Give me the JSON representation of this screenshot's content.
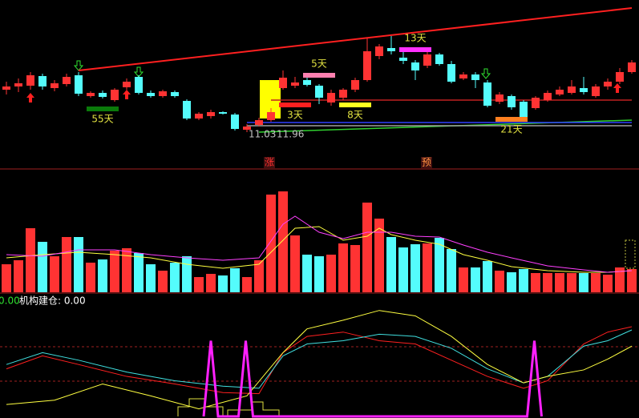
{
  "chart_data": [
    {
      "type": "candlestick",
      "up_color": "#ff3333",
      "down_color": "#54fcfc",
      "ylim": [
        10.93,
        12.63
      ],
      "open": [
        11.56,
        11.6,
        11.61,
        11.73,
        11.58,
        11.63,
        11.74,
        11.48,
        11.52,
        11.43,
        11.59,
        11.72,
        11.52,
        11.48,
        11.53,
        11.42,
        11.2,
        11.23,
        11.28,
        11.25,
        11.06,
        11.12,
        11.18,
        11.58,
        11.61,
        11.68,
        11.61,
        11.4,
        11.46,
        11.56,
        11.68,
        11.98,
        12.08,
        11.96,
        11.9,
        11.86,
        12.0,
        11.88,
        11.7,
        11.75,
        11.65,
        11.41,
        11.48,
        11.41,
        11.33,
        11.43,
        11.5,
        11.52,
        11.58,
        11.48,
        11.6,
        11.66,
        11.78
      ],
      "high": [
        11.66,
        11.7,
        11.78,
        11.76,
        11.68,
        11.76,
        11.78,
        11.54,
        11.55,
        11.58,
        11.7,
        11.74,
        11.55,
        11.56,
        11.55,
        11.44,
        11.28,
        11.31,
        11.29,
        11.27,
        11.13,
        11.21,
        11.33,
        11.8,
        11.72,
        11.72,
        11.63,
        11.56,
        11.58,
        11.71,
        12.2,
        12.13,
        12.23,
        12.06,
        11.93,
        12.03,
        12.02,
        11.92,
        11.78,
        11.78,
        11.68,
        11.53,
        11.5,
        11.43,
        11.48,
        11.55,
        11.6,
        11.68,
        11.72,
        11.63,
        11.7,
        11.83,
        11.93
      ],
      "low": [
        11.5,
        11.53,
        11.56,
        11.56,
        11.54,
        11.6,
        11.48,
        11.46,
        11.45,
        11.41,
        11.56,
        11.5,
        11.46,
        11.46,
        11.46,
        11.18,
        11.18,
        11.2,
        11.25,
        11.05,
        11.03,
        11.1,
        11.16,
        11.56,
        11.58,
        11.6,
        11.38,
        11.36,
        11.43,
        11.53,
        11.66,
        11.94,
        12.0,
        11.88,
        11.68,
        11.83,
        11.86,
        11.64,
        11.68,
        11.58,
        11.34,
        11.38,
        11.31,
        11.2,
        11.31,
        11.41,
        11.48,
        11.5,
        11.5,
        11.46,
        11.56,
        11.63,
        11.76
      ],
      "close": [
        11.6,
        11.64,
        11.74,
        11.6,
        11.64,
        11.72,
        11.51,
        11.52,
        11.47,
        11.56,
        11.66,
        11.52,
        11.48,
        11.54,
        11.48,
        11.2,
        11.26,
        11.28,
        11.26,
        11.07,
        11.1,
        11.18,
        11.28,
        11.71,
        11.65,
        11.62,
        11.46,
        11.52,
        11.56,
        11.68,
        12.04,
        12.1,
        12.04,
        11.92,
        11.8,
        12.0,
        11.88,
        11.66,
        11.75,
        11.68,
        11.36,
        11.5,
        11.34,
        11.22,
        11.46,
        11.52,
        11.56,
        11.6,
        11.53,
        11.6,
        11.66,
        11.78,
        11.9
      ],
      "lines": [
        {
          "color": "#ff2020",
          "x": [
            6,
            52
          ],
          "values": [
            11.8,
            12.58
          ]
        },
        {
          "color": "#30d030",
          "x": [
            21,
            52
          ],
          "values": [
            11.03,
            11.18
          ]
        },
        {
          "color": "#3040ff",
          "x": [
            20,
            52
          ],
          "values": [
            11.15,
            11.15
          ]
        },
        {
          "color": "#a0a0a0",
          "x": [
            20,
            52
          ],
          "values": [
            11.11,
            11.11
          ]
        },
        {
          "color": "#c02020",
          "x": [
            22,
            52
          ],
          "values": [
            11.43,
            11.43
          ]
        }
      ],
      "annotations": [
        {
          "label": "55天",
          "x": [
            7,
            9
          ],
          "value": 11.32,
          "color": "#0a7a0a"
        },
        {
          "label": "3天",
          "x": [
            23,
            25
          ],
          "value": 11.37,
          "color": "#ff2020"
        },
        {
          "label": "5天",
          "x": [
            25,
            27
          ],
          "value": 11.74,
          "color": "#ff80b0"
        },
        {
          "label": "8天",
          "x": [
            28,
            30
          ],
          "value": 11.37,
          "color": "#ffff20"
        },
        {
          "label": "13天",
          "x": [
            33,
            35
          ],
          "value": 12.06,
          "color": "#ff30ff"
        },
        {
          "label": "21天",
          "x": [
            41,
            43
          ],
          "value": 11.19,
          "color": "#ff8020"
        }
      ],
      "price_labels": [
        "11.03",
        "11.96"
      ]
    },
    {
      "type": "bar",
      "ylim": [
        0,
        145
      ],
      "values": [
        35,
        40,
        80,
        63,
        45,
        69,
        69,
        37,
        41,
        52,
        55,
        49,
        35,
        27,
        37,
        45,
        19,
        23,
        21,
        30,
        19,
        40,
        122,
        126,
        71,
        47,
        45,
        47,
        61,
        59,
        112,
        92,
        69,
        56,
        60,
        61,
        68,
        54,
        31,
        31,
        39,
        27,
        25,
        29,
        24,
        24,
        24,
        24,
        24,
        24,
        22,
        31,
        29
      ],
      "markers": [
        "涨",
        "预"
      ],
      "series": [
        {
          "color": "#ffff40",
          "x": [
            0,
            3,
            6,
            9,
            12,
            15,
            18,
            21,
            23,
            24,
            26,
            28,
            30,
            31,
            32,
            34,
            36,
            38,
            40,
            42,
            45,
            48,
            50,
            52
          ],
          "values": [
            43,
            47,
            50,
            47,
            43,
            35,
            30,
            35,
            65,
            80,
            82,
            65,
            70,
            80,
            72,
            65,
            60,
            47,
            40,
            32,
            27,
            25,
            25,
            27
          ]
        },
        {
          "color": "#ff40ff",
          "x": [
            0,
            3,
            6,
            9,
            12,
            15,
            18,
            21,
            23,
            24,
            26,
            28,
            30,
            32,
            34,
            36,
            38,
            40,
            42,
            45,
            48,
            50,
            52
          ],
          "values": [
            47,
            45,
            53,
            53,
            47,
            43,
            40,
            43,
            85,
            95,
            75,
            67,
            75,
            75,
            70,
            69,
            59,
            50,
            43,
            33,
            28,
            25,
            27
          ]
        }
      ]
    },
    {
      "type": "line",
      "ylim": [
        0,
        100
      ],
      "labels": [
        "0.00",
        "机构建仓: 0.00"
      ],
      "series": [
        {
          "color": "#ff2020",
          "x": [
            0,
            3,
            6,
            10,
            14,
            18,
            21,
            23,
            25,
            28,
            31,
            34,
            37,
            40,
            43,
            45,
            48,
            50,
            52
          ],
          "values": [
            44,
            56,
            48,
            37,
            30,
            22,
            21,
            59,
            74,
            78,
            70,
            67,
            52,
            37,
            26,
            33,
            67,
            78,
            83
          ]
        },
        {
          "color": "#40e0e0",
          "x": [
            0,
            3,
            6,
            10,
            14,
            18,
            21,
            23,
            25,
            28,
            31,
            34,
            37,
            40,
            43,
            45,
            48,
            50,
            52
          ],
          "values": [
            48,
            59,
            52,
            41,
            33,
            28,
            26,
            56,
            67,
            70,
            76,
            74,
            63,
            44,
            31,
            37,
            65,
            70,
            80
          ]
        },
        {
          "color": "#ffff40",
          "x": [
            0,
            4,
            8,
            12,
            16,
            20,
            23,
            25,
            28,
            31,
            34,
            37,
            40,
            43,
            45,
            48,
            50,
            52
          ],
          "values": [
            11,
            15,
            30,
            19,
            7,
            19,
            59,
            81,
            89,
            98,
            93,
            74,
            48,
            31,
            37,
            43,
            53,
            65
          ]
        },
        {
          "color": "#ff20ff",
          "x": [
            16.4,
            17,
            17.6,
            19.3,
            19.9,
            20.5,
            43.3,
            43.9,
            44.5
          ],
          "values": [
            0,
            70,
            0,
            0,
            70,
            0,
            0,
            70,
            0
          ]
        }
      ]
    }
  ]
}
